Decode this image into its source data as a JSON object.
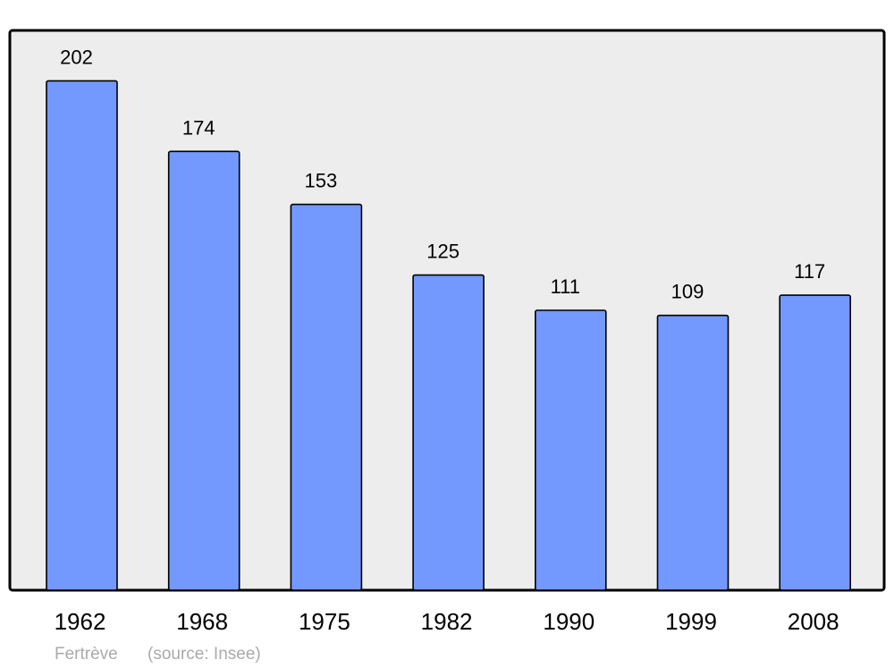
{
  "chart_data": {
    "type": "bar",
    "categories": [
      "1962",
      "1968",
      "1975",
      "1982",
      "1990",
      "1999",
      "2008"
    ],
    "values": [
      202,
      174,
      153,
      125,
      111,
      109,
      117
    ],
    "ylim": [
      0,
      222
    ],
    "grid": false,
    "data_labels": true,
    "colors": {
      "bar": "#7399ff",
      "bar_stroke": "#000000",
      "plot_bg": "#ededed",
      "footer": "#aaaaaa"
    }
  },
  "footer": {
    "place": "Fertrève",
    "source": "(source: Insee)"
  }
}
